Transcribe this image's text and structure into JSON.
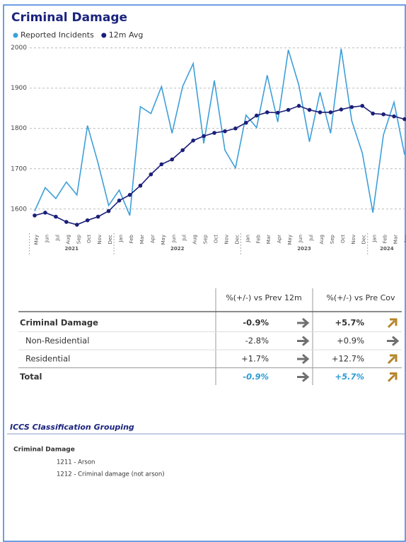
{
  "chart_data": {
    "type": "line",
    "title": "Criminal Damage",
    "categories": [
      {
        "month": "May",
        "year": "2021"
      },
      {
        "month": "Jun",
        "year": "2021"
      },
      {
        "month": "Jul",
        "year": "2021"
      },
      {
        "month": "Aug",
        "year": "2021"
      },
      {
        "month": "Sep",
        "year": "2021"
      },
      {
        "month": "Oct",
        "year": "2021"
      },
      {
        "month": "Nov",
        "year": "2021"
      },
      {
        "month": "Dec",
        "year": "2021"
      },
      {
        "month": "Jan",
        "year": "2022"
      },
      {
        "month": "Feb",
        "year": "2022"
      },
      {
        "month": "Mar",
        "year": "2022"
      },
      {
        "month": "Apr",
        "year": "2022"
      },
      {
        "month": "May",
        "year": "2022"
      },
      {
        "month": "Jun",
        "year": "2022"
      },
      {
        "month": "Jul",
        "year": "2022"
      },
      {
        "month": "Aug",
        "year": "2022"
      },
      {
        "month": "Sep",
        "year": "2022"
      },
      {
        "month": "Oct",
        "year": "2022"
      },
      {
        "month": "Nov",
        "year": "2022"
      },
      {
        "month": "Dec",
        "year": "2022"
      },
      {
        "month": "Jan",
        "year": "2023"
      },
      {
        "month": "Feb",
        "year": "2023"
      },
      {
        "month": "Mar",
        "year": "2023"
      },
      {
        "month": "Apr",
        "year": "2023"
      },
      {
        "month": "May",
        "year": "2023"
      },
      {
        "month": "Jun",
        "year": "2023"
      },
      {
        "month": "Jul",
        "year": "2023"
      },
      {
        "month": "Aug",
        "year": "2023"
      },
      {
        "month": "Sep",
        "year": "2023"
      },
      {
        "month": "Oct",
        "year": "2023"
      },
      {
        "month": "Nov",
        "year": "2023"
      },
      {
        "month": "Dec",
        "year": "2023"
      },
      {
        "month": "Jan",
        "year": "2024"
      },
      {
        "month": "Feb",
        "year": "2024"
      },
      {
        "month": "Mar",
        "year": "2024"
      },
      {
        "month": "Apr",
        "year": "2024"
      }
    ],
    "series": [
      {
        "name": "Reported Incidents",
        "color": "#3d9fd9",
        "markers": false,
        "values": [
          1595,
          1653,
          1626,
          1667,
          1635,
          1807,
          1714,
          1609,
          1647,
          1584,
          1854,
          1837,
          1904,
          1788,
          1904,
          1961,
          1763,
          1919,
          1746,
          1702,
          1833,
          1802,
          1932,
          1816,
          1995,
          1907,
          1767,
          1890,
          1788,
          1998,
          1819,
          1739,
          1591,
          1784,
          1865,
          1735
        ]
      },
      {
        "name": "12m Avg",
        "color": "#1b1f78",
        "markers": true,
        "values": [
          1584,
          1591,
          1581,
          1568,
          1561,
          1572,
          1581,
          1595,
          1621,
          1635,
          1658,
          1686,
          1711,
          1723,
          1746,
          1770,
          1781,
          1789,
          1793,
          1800,
          1814,
          1832,
          1840,
          1839,
          1846,
          1856,
          1846,
          1840,
          1840,
          1847,
          1853,
          1856,
          1837,
          1835,
          1830,
          1823
        ]
      }
    ],
    "ylim": [
      1540,
      2010
    ],
    "yticks": [
      1600,
      1700,
      1800,
      1900,
      2000
    ],
    "grid": true
  },
  "table": {
    "headers": [
      "%(+/-) vs Prev 12m",
      "%(+/-) vs Pre Cov"
    ],
    "rows": [
      {
        "name": "Criminal Damage",
        "cells": [
          {
            "value": "-0.9%",
            "trend": "flat"
          },
          {
            "value": "+5.7%",
            "trend": "up"
          }
        ]
      },
      {
        "name": "Non-Residential",
        "cells": [
          {
            "value": "-2.8%",
            "trend": "flat"
          },
          {
            "value": "+0.9%",
            "trend": "flat"
          }
        ]
      },
      {
        "name": "Residential",
        "cells": [
          {
            "value": "+1.7%",
            "trend": "flat"
          },
          {
            "value": "+12.7%",
            "trend": "up"
          }
        ]
      },
      {
        "name": "Total",
        "cells": [
          {
            "value": "-0.9%",
            "trend": "flat"
          },
          {
            "value": "+5.7%",
            "trend": "up"
          }
        ]
      }
    ]
  },
  "classification": {
    "title": "ICCS Classification Grouping",
    "group": "Criminal Damage",
    "items": [
      "1211 - Arson",
      "1212 - Criminal damage (not arson)"
    ]
  }
}
